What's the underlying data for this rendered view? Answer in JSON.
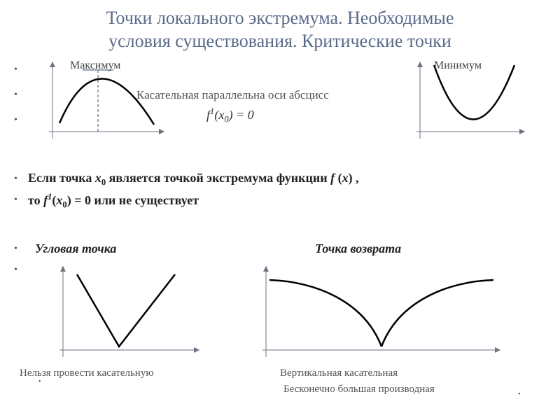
{
  "title_line1": "Точки локального экстремума. Необходимые",
  "title_line2": "условия существования. Критические точки",
  "label_max": "Максимум",
  "label_min": "Минимум",
  "tangent_text": "Касательная параллельна оси абсцисс",
  "formula_main_html": "<i>f</i><sup style='font-size:0.7em'><i>1</i></sup>(<i>x</i><sub>0</sub>) = 0",
  "cond_line1_html": "Если точка <i>x</i><sub>0</sub> является точкой экстремума функции <i>f</i> (<i>x</i>) ,",
  "cond_line2_html": "то <i>f</i><sup style='font-size:0.7em'><i>1</i></sup>(<i>x</i><sub>0</sub>) = 0 или не существует",
  "corner_point": "Угловая точка",
  "cusp_point": "Точка возврата",
  "no_tangent": "Нельзя провести касательную",
  "vertical_tangent": "Вертикальная касательная",
  "inf_derivative": "Бесконечно большая производная",
  "colors": {
    "title": "#5a6a88",
    "axis": "#6b7280",
    "curve": "#000000",
    "dashed": "#5a6a88",
    "background": "#ffffff"
  },
  "chart_max": {
    "type": "parabola-down",
    "axis_color": "#6b7280",
    "curve_color": "#000000",
    "dashed_color": "#5a6a88",
    "stroke_width": 2.5,
    "dash_pattern": "4 3"
  },
  "chart_min": {
    "type": "parabola-up",
    "axis_color": "#6b7280",
    "curve_color": "#000000",
    "stroke_width": 2.5
  },
  "chart_corner": {
    "type": "v-shape",
    "axis_color": "#6b7280",
    "curve_color": "#000000",
    "stroke_width": 2.5
  },
  "chart_cusp": {
    "type": "cusp",
    "axis_color": "#6b7280",
    "curve_color": "#000000",
    "stroke_width": 2.5
  }
}
